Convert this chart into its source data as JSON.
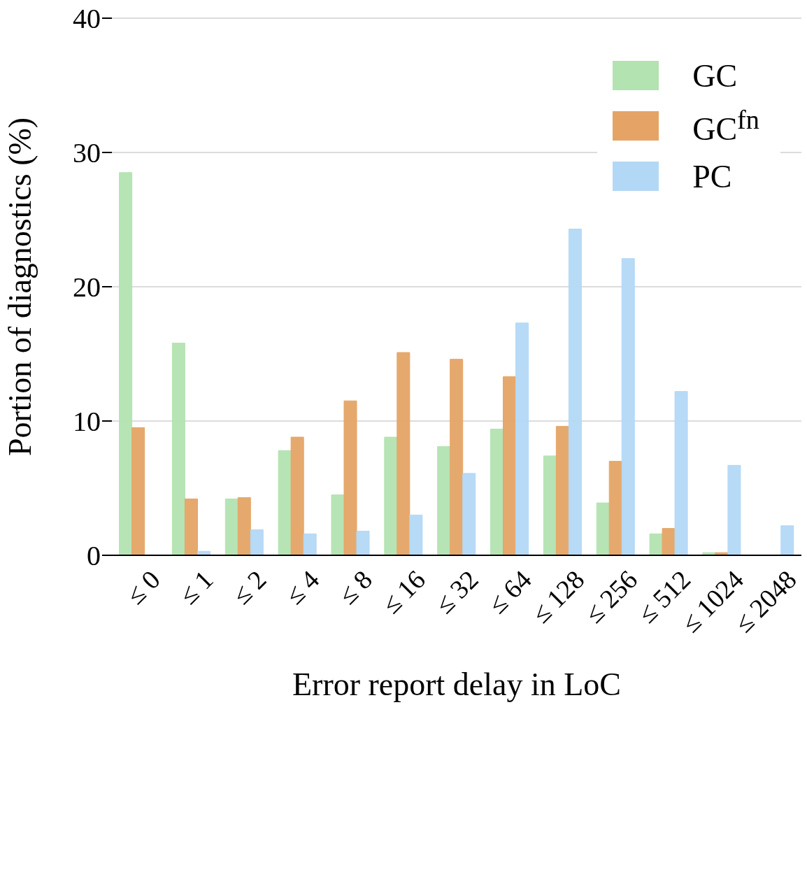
{
  "chart_data": {
    "type": "bar",
    "xlabel": "Error report delay in LoC",
    "ylabel": "Portion of diagnostics (%)",
    "categories": [
      "≤ 0",
      "≤ 1",
      "≤ 2",
      "≤ 4",
      "≤ 8",
      "≤ 16",
      "≤ 32",
      "≤ 64",
      "≤ 128",
      "≤ 256",
      "≤ 512",
      "≤ 1024",
      "≤ 2048"
    ],
    "series": [
      {
        "name": "GC",
        "color": "#b3e3b0",
        "values": [
          28.5,
          15.8,
          4.2,
          7.8,
          4.5,
          8.8,
          8.1,
          9.4,
          7.4,
          3.9,
          1.6,
          0.2,
          0
        ]
      },
      {
        "name": "GC$^{fn}$",
        "color": "#e5a465",
        "values": [
          9.5,
          4.2,
          4.3,
          8.8,
          11.5,
          15.1,
          14.6,
          13.3,
          9.6,
          7.0,
          2.0,
          0.2,
          0
        ]
      },
      {
        "name": "PC",
        "color": "#b3d8f5",
        "values": [
          0,
          0.3,
          1.9,
          1.6,
          1.8,
          3.0,
          6.1,
          17.3,
          24.3,
          22.1,
          12.2,
          6.7,
          2.2
        ]
      }
    ],
    "ylim": [
      0,
      40
    ],
    "yticks": [
      0,
      10,
      20,
      30,
      40
    ],
    "grid": "y",
    "legend": "top right"
  }
}
